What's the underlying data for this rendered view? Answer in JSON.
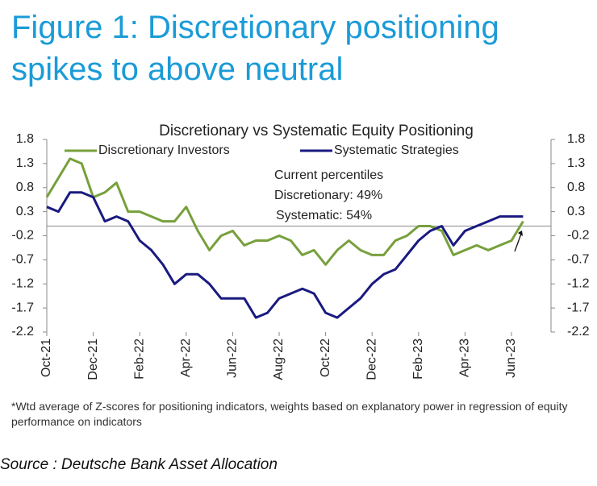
{
  "heading": "Figure 1: Discretionary positioning spikes to above neutral",
  "chart_data": {
    "type": "line",
    "title": "Discretionary  vs Systematic Equity Positioning",
    "annotations": [
      "Current percentiles",
      "Discretionary: 49%",
      "Systematic: 54%"
    ],
    "categories": [
      "Oct-21",
      null,
      null,
      null,
      "Dec-21",
      null,
      null,
      null,
      "Feb-22",
      null,
      null,
      null,
      "Apr-22",
      null,
      null,
      null,
      "Jun-22",
      null,
      null,
      null,
      "Aug-22",
      null,
      null,
      null,
      "Oct-22",
      null,
      null,
      null,
      "Dec-22",
      null,
      null,
      null,
      "Feb-23",
      null,
      null,
      null,
      "Apr-23",
      null,
      null,
      null,
      "Jun-23",
      null
    ],
    "series": [
      {
        "name": "Discretionary Investors",
        "color": "#77a03c",
        "values": [
          0.6,
          1.0,
          1.4,
          1.3,
          0.6,
          0.7,
          0.9,
          0.3,
          0.3,
          0.2,
          0.1,
          0.1,
          0.4,
          -0.1,
          -0.5,
          -0.2,
          -0.1,
          -0.4,
          -0.3,
          -0.3,
          -0.2,
          -0.3,
          -0.6,
          -0.5,
          -0.8,
          -0.5,
          -0.3,
          -0.5,
          -0.6,
          -0.6,
          -0.3,
          -0.2,
          0.0,
          0.0,
          -0.1,
          -0.6,
          -0.5,
          -0.4,
          -0.5,
          -0.4,
          -0.3,
          0.1
        ]
      },
      {
        "name": "Systematic Strategies",
        "color": "#1a1a80",
        "values": [
          0.4,
          0.3,
          0.7,
          0.7,
          0.6,
          0.1,
          0.2,
          0.1,
          -0.3,
          -0.5,
          -0.8,
          -1.2,
          -1.0,
          -1.0,
          -1.2,
          -1.5,
          -1.5,
          -1.5,
          -1.9,
          -1.8,
          -1.5,
          -1.4,
          -1.3,
          -1.4,
          -1.8,
          -1.9,
          -1.7,
          -1.5,
          -1.2,
          -1.0,
          -0.9,
          -0.6,
          -0.3,
          -0.1,
          0.0,
          -0.4,
          -0.1,
          0.0,
          0.1,
          0.2,
          0.2,
          0.2
        ]
      }
    ],
    "ylim": [
      -2.2,
      1.8
    ],
    "yticks": [
      1.8,
      1.3,
      0.8,
      0.3,
      -0.2,
      -0.7,
      -1.2,
      -1.7,
      -2.2
    ],
    "y2lim": [
      -2.2,
      1.8
    ],
    "y2ticks": [
      1.8,
      1.3,
      0.8,
      0.3,
      -0.2,
      -0.7,
      -1.2,
      -1.7,
      -2.2
    ],
    "grid": false
  },
  "footnote": "*Wtd average of Z-scores for positioning indicators, weights based on explanatory power in regression of equity performance on indicators",
  "source": "Source : Deutsche Bank Asset Allocation"
}
